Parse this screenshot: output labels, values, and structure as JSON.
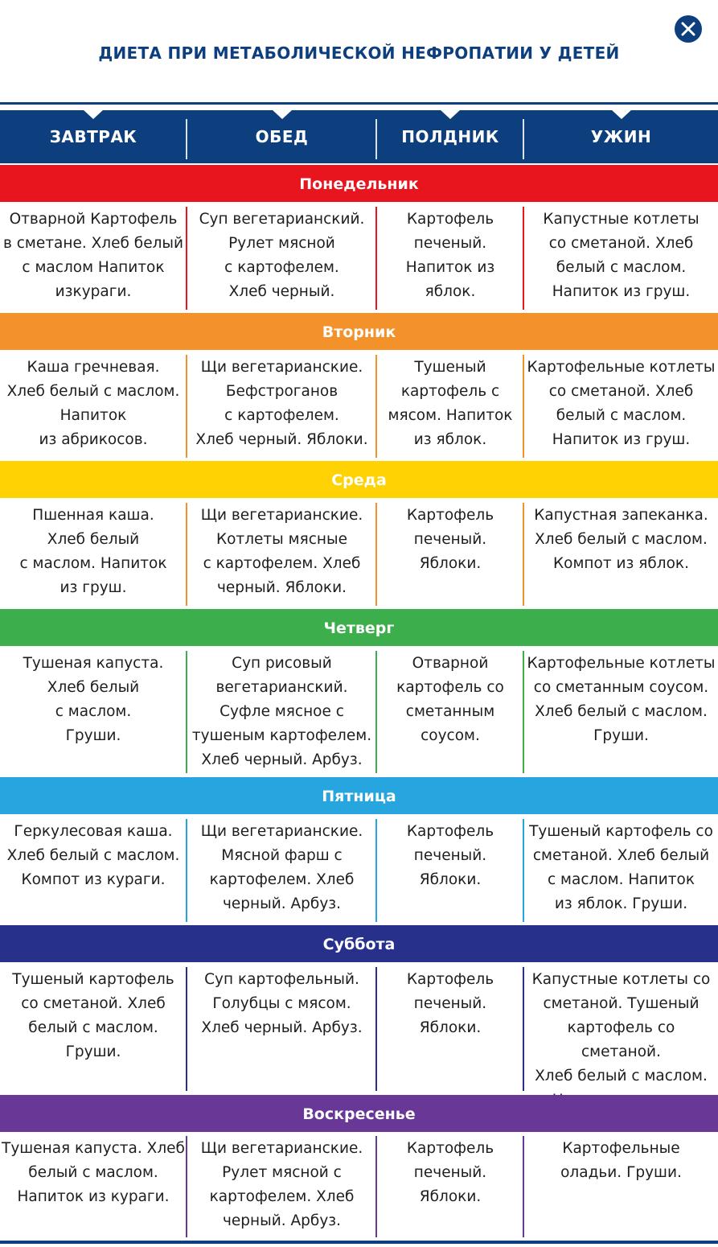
{
  "title": "ДИЕТА ПРИ МЕТАБОЛИЧЕСКОЙ НЕФРОПАТИИ У ДЕТЕЙ",
  "close_icon": "close-icon",
  "columns": [
    "ЗАВТРАК",
    "ОБЕД",
    "ПОЛДНИК",
    "УЖИН"
  ],
  "colors": {
    "header": "#0d3f7e",
    "monday": "#e8141e",
    "tuesday": "#f3922a",
    "wednesday": "#fed203",
    "thursday": "#3cae4c",
    "friday": "#27a5de",
    "saturday": "#27318b",
    "sunday": "#693796"
  },
  "days": [
    {
      "name": "Понедельник",
      "meals": [
        [
          "Отварной Картофель",
          "в сметане. Хлеб белый",
          "с маслом Напиток",
          "изкураги."
        ],
        [
          "Суп вегетарианский.",
          "Рулет мясной",
          "с картофелем.",
          "Хлеб черный."
        ],
        [
          "Картофель",
          "печеный.",
          "Напиток из",
          "яблок."
        ],
        [
          "Капустные котлеты",
          "со сметаной. Хлеб",
          "белый с маслом.",
          "Напиток из груш."
        ]
      ]
    },
    {
      "name": "Вторник",
      "meals": [
        [
          "Каша гречневая.",
          "Хлеб белый с маслом.",
          "Напиток",
          "из абрикосов."
        ],
        [
          "Щи вегетарианские.",
          "Бефстроганов",
          "с картофелем.",
          "Хлеб черный. Яблоки."
        ],
        [
          "Тушеный",
          "картофель с",
          "мясом. Напиток",
          "из яблок."
        ],
        [
          "Картофельные котлеты",
          "со сметаной. Хлеб",
          "белый с маслом.",
          "Напиток из груш."
        ]
      ]
    },
    {
      "name": "Среда",
      "meals": [
        [
          "Пшенная каша.",
          "Хлеб белый",
          "с маслом. Напиток",
          "из груш."
        ],
        [
          "Щи вегетарианские.",
          "Котлеты мясные",
          "с картофелем. Хлеб",
          "черный. Яблоки."
        ],
        [
          "Картофель",
          "печеный.",
          "Яблоки."
        ],
        [
          "Капустная запеканка.",
          "Хлеб белый с маслом.",
          "Компот из яблок."
        ]
      ]
    },
    {
      "name": "Четверг",
      "meals": [
        [
          "Тушеная капуста.",
          "Хлеб белый",
          "с маслом.",
          "Груши."
        ],
        [
          "Суп рисовый",
          "вегетарианский.",
          "Суфле мясное с",
          "тушеным картофелем.",
          "Хлеб черный. Арбуз."
        ],
        [
          "Отварной",
          "картофель со",
          "сметанным",
          "соусом."
        ],
        [
          "Картофельные котлеты",
          "со сметанным соусом.",
          "Хлеб белый с маслом.",
          "Груши."
        ]
      ]
    },
    {
      "name": "Пятница",
      "meals": [
        [
          "Геркулесовая каша.",
          "Хлеб белый с маслом.",
          "Компот из кураги."
        ],
        [
          "Щи вегетарианские.",
          "Мясной фарш с",
          "картофелем. Хлеб",
          "черный. Арбуз."
        ],
        [
          "Картофель",
          "печеный.",
          "Яблоки."
        ],
        [
          "Тушеный картофель со",
          "сметаной. Хлеб белый",
          "с маслом. Напиток",
          "из яблок. Груши."
        ]
      ]
    },
    {
      "name": "Суббота",
      "meals": [
        [
          "Тушеный картофель",
          "со сметаной. Хлеб",
          "белый с маслом.",
          "Груши."
        ],
        [
          "Суп картофельный.",
          "Голубцы с мясом.",
          "Хлеб черный. Арбуз."
        ],
        [
          "Картофель",
          "печеный.",
          "Яблоки."
        ],
        [
          "Капустные котлеты со",
          "сметаной. Тушеный",
          "картофель со сметаной.",
          "Хлеб белый с маслом.",
          "Напиток из груш."
        ]
      ]
    },
    {
      "name": "Воскресенье",
      "meals": [
        [
          "Тушеная капуста. Хлеб",
          "белый с маслом.",
          "Напиток из кураги."
        ],
        [
          "Щи вегетарианские.",
          "Рулет мясной с",
          "картофелем. Хлеб",
          "черный. Арбуз."
        ],
        [
          "Картофель",
          "печеный.",
          "Яблоки."
        ],
        [
          "Картофельные",
          "оладьи. Груши."
        ]
      ]
    }
  ]
}
